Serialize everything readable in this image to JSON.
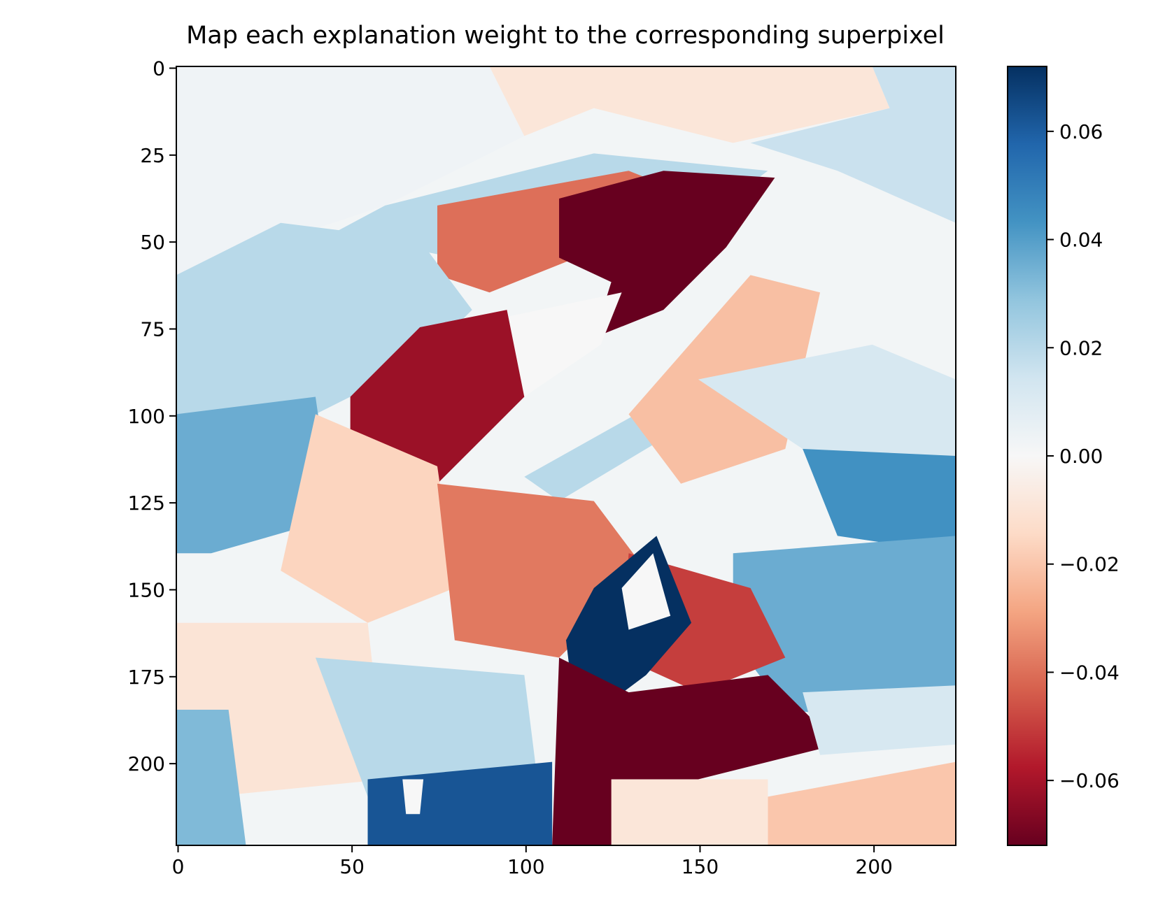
{
  "chart_data": {
    "type": "heatmap",
    "title": "Map each explanation weight to the corresponding superpixel",
    "xlabel": "",
    "ylabel": "",
    "image_size": [
      224,
      224
    ],
    "xlim": [
      -0.5,
      223.5
    ],
    "ylim": [
      223.5,
      -0.5
    ],
    "x_ticks": [
      0,
      50,
      100,
      150,
      200
    ],
    "x_tick_labels": [
      "0",
      "50",
      "100",
      "150",
      "200"
    ],
    "y_ticks": [
      0,
      25,
      50,
      75,
      100,
      125,
      150,
      175,
      200
    ],
    "y_tick_labels": [
      "0",
      "25",
      "50",
      "75",
      "100",
      "125",
      "150",
      "175",
      "200"
    ],
    "colormap": "RdBu",
    "color_range": [
      -0.072,
      0.072
    ],
    "colorbar_ticks": [
      0.06,
      0.04,
      0.02,
      0.0,
      -0.02,
      -0.04,
      -0.06
    ],
    "colorbar_tick_labels": [
      "0.06",
      "0.04",
      "0.02",
      "0.00",
      "−0.02",
      "−0.04",
      "−0.06"
    ],
    "colorbar_stops": [
      "#67001f",
      "#b2182b",
      "#d6604d",
      "#f4a582",
      "#fddbc7",
      "#f7f7f7",
      "#d1e5f0",
      "#92c5de",
      "#4393c3",
      "#2166ac",
      "#053061"
    ],
    "background_weight": 0.002,
    "superpixels": [
      {
        "id": "top-left-neutral",
        "weight": 0.003,
        "polygon": [
          [
            0,
            0
          ],
          [
            90,
            0
          ],
          [
            100,
            20
          ],
          [
            60,
            40
          ],
          [
            30,
            50
          ],
          [
            0,
            60
          ]
        ]
      },
      {
        "id": "top-center-light-red",
        "weight": -0.009,
        "polygon": [
          [
            90,
            0
          ],
          [
            200,
            0
          ],
          [
            205,
            12
          ],
          [
            160,
            22
          ],
          [
            120,
            12
          ],
          [
            100,
            20
          ]
        ]
      },
      {
        "id": "top-right-light-blue",
        "weight": 0.016,
        "polygon": [
          [
            200,
            0
          ],
          [
            224,
            0
          ],
          [
            224,
            45
          ],
          [
            190,
            30
          ],
          [
            165,
            22
          ],
          [
            205,
            12
          ]
        ]
      },
      {
        "id": "upper-band-light-blue",
        "weight": 0.02,
        "polygon": [
          [
            60,
            40
          ],
          [
            120,
            25
          ],
          [
            170,
            30
          ],
          [
            150,
            45
          ],
          [
            110,
            52
          ],
          [
            80,
            55
          ],
          [
            45,
            48
          ]
        ]
      },
      {
        "id": "upper-orange-band",
        "weight": -0.04,
        "polygon": [
          [
            75,
            40
          ],
          [
            130,
            30
          ],
          [
            155,
            40
          ],
          [
            115,
            55
          ],
          [
            90,
            65
          ],
          [
            75,
            60
          ]
        ]
      },
      {
        "id": "upper-dark-red-region",
        "weight": -0.072,
        "polygon": [
          [
            110,
            38
          ],
          [
            140,
            30
          ],
          [
            172,
            32
          ],
          [
            158,
            52
          ],
          [
            140,
            70
          ],
          [
            120,
            78
          ],
          [
            125,
            62
          ],
          [
            110,
            55
          ]
        ]
      },
      {
        "id": "left-middle-light-blue",
        "weight": 0.02,
        "polygon": [
          [
            0,
            60
          ],
          [
            30,
            45
          ],
          [
            70,
            50
          ],
          [
            85,
            70
          ],
          [
            70,
            85
          ],
          [
            40,
            100
          ],
          [
            0,
            105
          ]
        ]
      },
      {
        "id": "center-white-slab",
        "weight": 0.0,
        "polygon": [
          [
            95,
            72
          ],
          [
            128,
            65
          ],
          [
            122,
            80
          ],
          [
            100,
            95
          ]
        ]
      },
      {
        "id": "center-red-arm",
        "weight": -0.062,
        "polygon": [
          [
            70,
            75
          ],
          [
            95,
            70
          ],
          [
            100,
            95
          ],
          [
            90,
            105
          ],
          [
            75,
            120
          ],
          [
            50,
            110
          ],
          [
            50,
            95
          ]
        ]
      },
      {
        "id": "diagonal-light-blue-streak",
        "weight": 0.02,
        "polygon": [
          [
            100,
            118
          ],
          [
            150,
            90
          ],
          [
            160,
            95
          ],
          [
            110,
            125
          ]
        ]
      },
      {
        "id": "diagonal-peach-band",
        "weight": -0.022,
        "polygon": [
          [
            130,
            100
          ],
          [
            165,
            60
          ],
          [
            185,
            65
          ],
          [
            175,
            110
          ],
          [
            145,
            120
          ]
        ]
      },
      {
        "id": "right-upper-light-blue",
        "weight": 0.012,
        "polygon": [
          [
            150,
            90
          ],
          [
            200,
            80
          ],
          [
            224,
            90
          ],
          [
            224,
            115
          ],
          [
            180,
            110
          ]
        ]
      },
      {
        "id": "left-mid-blue",
        "weight": 0.036,
        "polygon": [
          [
            0,
            100
          ],
          [
            40,
            95
          ],
          [
            45,
            130
          ],
          [
            10,
            140
          ],
          [
            0,
            140
          ]
        ]
      },
      {
        "id": "left-peach-body",
        "weight": -0.016,
        "polygon": [
          [
            40,
            100
          ],
          [
            75,
            115
          ],
          [
            80,
            150
          ],
          [
            55,
            160
          ],
          [
            30,
            145
          ]
        ]
      },
      {
        "id": "center-orange-body",
        "weight": -0.038,
        "polygon": [
          [
            75,
            120
          ],
          [
            120,
            125
          ],
          [
            135,
            145
          ],
          [
            110,
            170
          ],
          [
            80,
            165
          ]
        ]
      },
      {
        "id": "right-mid-blue",
        "weight": 0.044,
        "polygon": [
          [
            180,
            110
          ],
          [
            224,
            112
          ],
          [
            224,
            140
          ],
          [
            190,
            135
          ]
        ]
      },
      {
        "id": "right-lower-blue",
        "weight": 0.036,
        "polygon": [
          [
            160,
            140
          ],
          [
            224,
            135
          ],
          [
            224,
            190
          ],
          [
            175,
            185
          ],
          [
            160,
            165
          ]
        ]
      },
      {
        "id": "center-lower-red",
        "weight": -0.05,
        "polygon": [
          [
            130,
            140
          ],
          [
            165,
            150
          ],
          [
            175,
            170
          ],
          [
            150,
            180
          ],
          [
            128,
            170
          ]
        ]
      },
      {
        "id": "navy-loop",
        "weight": 0.072,
        "polygon": [
          [
            120,
            150
          ],
          [
            138,
            135
          ],
          [
            148,
            160
          ],
          [
            135,
            175
          ],
          [
            115,
            190
          ],
          [
            112,
            165
          ]
        ]
      },
      {
        "id": "navy-loop-hole",
        "weight": 0.0,
        "polygon": [
          [
            128,
            150
          ],
          [
            137,
            140
          ],
          [
            142,
            158
          ],
          [
            130,
            162
          ]
        ]
      },
      {
        "id": "lower-dark-red-region",
        "weight": -0.072,
        "polygon": [
          [
            110,
            170
          ],
          [
            130,
            180
          ],
          [
            170,
            175
          ],
          [
            190,
            195
          ],
          [
            150,
            205
          ],
          [
            130,
            210
          ],
          [
            125,
            224
          ],
          [
            108,
            224
          ]
        ]
      },
      {
        "id": "bottom-left-peach",
        "weight": -0.01,
        "polygon": [
          [
            0,
            160
          ],
          [
            55,
            160
          ],
          [
            60,
            205
          ],
          [
            10,
            210
          ],
          [
            0,
            200
          ]
        ]
      },
      {
        "id": "bottom-left-light-blue",
        "weight": 0.02,
        "polygon": [
          [
            40,
            170
          ],
          [
            100,
            175
          ],
          [
            105,
            215
          ],
          [
            55,
            210
          ]
        ]
      },
      {
        "id": "bottom-left-blue",
        "weight": 0.032,
        "polygon": [
          [
            0,
            185
          ],
          [
            15,
            185
          ],
          [
            20,
            224
          ],
          [
            0,
            224
          ]
        ]
      },
      {
        "id": "bottom-navy-patch",
        "weight": 0.062,
        "polygon": [
          [
            55,
            205
          ],
          [
            108,
            200
          ],
          [
            108,
            224
          ],
          [
            55,
            224
          ]
        ]
      },
      {
        "id": "bottom-navy-hole",
        "weight": 0.0,
        "polygon": [
          [
            65,
            205
          ],
          [
            71,
            205
          ],
          [
            70,
            215
          ],
          [
            66,
            215
          ]
        ]
      },
      {
        "id": "bottom-right-peach",
        "weight": -0.02,
        "polygon": [
          [
            170,
            210
          ],
          [
            224,
            200
          ],
          [
            224,
            224
          ],
          [
            170,
            224
          ]
        ]
      },
      {
        "id": "bottom-mid-light-peach",
        "weight": -0.009,
        "polygon": [
          [
            125,
            205
          ],
          [
            170,
            205
          ],
          [
            170,
            224
          ],
          [
            125,
            224
          ]
        ]
      },
      {
        "id": "right-light-strip",
        "weight": 0.012,
        "polygon": [
          [
            180,
            180
          ],
          [
            224,
            178
          ],
          [
            224,
            195
          ],
          [
            185,
            198
          ]
        ]
      }
    ]
  }
}
